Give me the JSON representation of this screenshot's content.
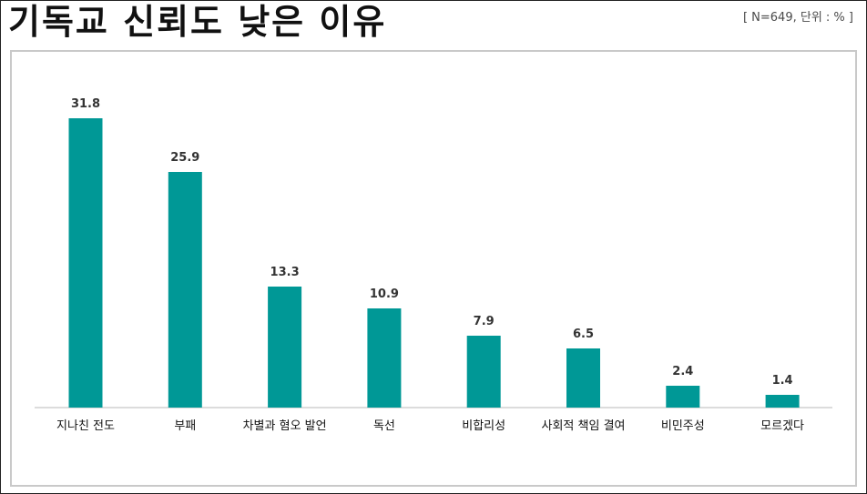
{
  "title": "기독교 신뢰도 낮은 이유",
  "note": "[ N=649, 단위 : % ]",
  "colors": {
    "bar": "#009896",
    "axis": "#d0d0d0"
  },
  "chart_data": {
    "type": "bar",
    "categories": [
      "지나친 전도",
      "부패",
      "차별과 혐오 발언",
      "독선",
      "비합리성",
      "사회적 책임 결여",
      "비민주성",
      "모르겠다"
    ],
    "values": [
      31.8,
      25.9,
      13.3,
      10.9,
      7.9,
      6.5,
      2.4,
      1.4
    ],
    "unit": "%",
    "ylim": [
      0,
      31.8
    ],
    "grid": false,
    "legend": "none"
  }
}
